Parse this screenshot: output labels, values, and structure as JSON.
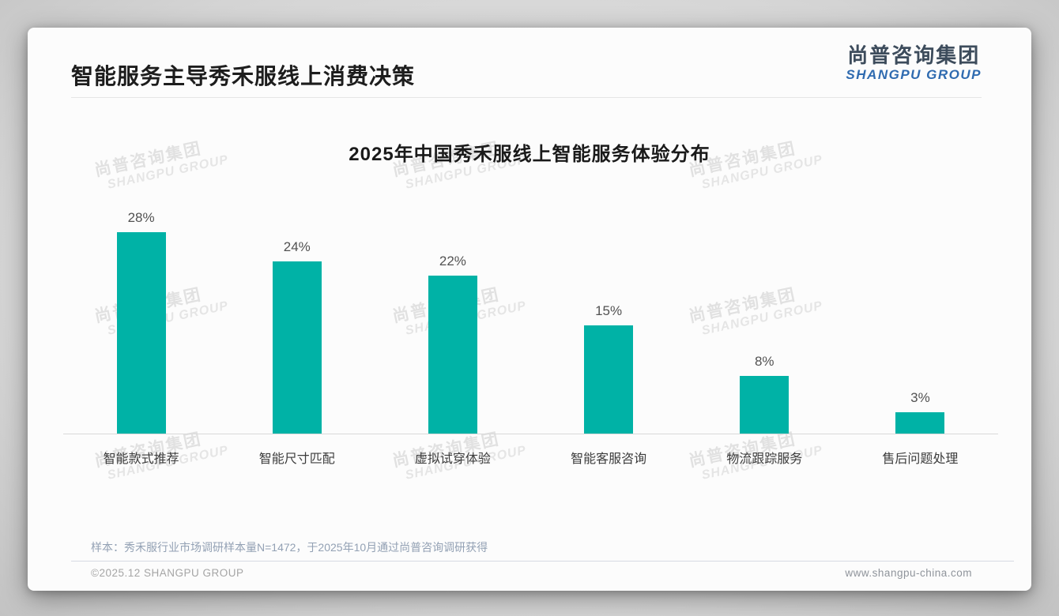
{
  "slide": {
    "page_title": "智能服务主导秀禾服线上消费决策",
    "logo": {
      "zh": "尚普咨询集团",
      "en": "SHANGPU GROUP"
    },
    "watermark": {
      "zh": "尚普咨询集团",
      "en": "SHANGPU GROUP"
    },
    "sample_note": "样本：秀禾服行业市场调研样本量N=1472，于2025年10月通过尚普咨询调研获得",
    "footer": {
      "left": "©2025.12 SHANGPU GROUP",
      "right": "www.shangpu-china.com"
    }
  },
  "chart_data": {
    "type": "bar",
    "title": "2025年中国秀禾服线上智能服务体验分布",
    "categories": [
      "智能款式推荐",
      "智能尺寸匹配",
      "虚拟试穿体验",
      "智能客服咨询",
      "物流跟踪服务",
      "售后问题处理"
    ],
    "values": [
      28,
      24,
      22,
      15,
      8,
      3
    ],
    "value_labels": [
      "28%",
      "24%",
      "22%",
      "15%",
      "8%",
      "3%"
    ],
    "unit": "%",
    "xlabel": "",
    "ylabel": "",
    "ylim": [
      0,
      30
    ],
    "grid": false,
    "legend": false,
    "bar_color": "#00b2a6"
  },
  "colors": {
    "accent_teal": "#00b2a6",
    "logo_blue": "#2f6bb0",
    "logo_dark": "#3d4c5c",
    "title_text": "#1d1d1d",
    "value_label_text": "#525252",
    "category_label_text": "#3c3c3c",
    "note_text": "#93a1b4",
    "footer_text": "#a5a5a5",
    "divider": "#e5e5e5",
    "baseline": "#d9d9d9"
  }
}
